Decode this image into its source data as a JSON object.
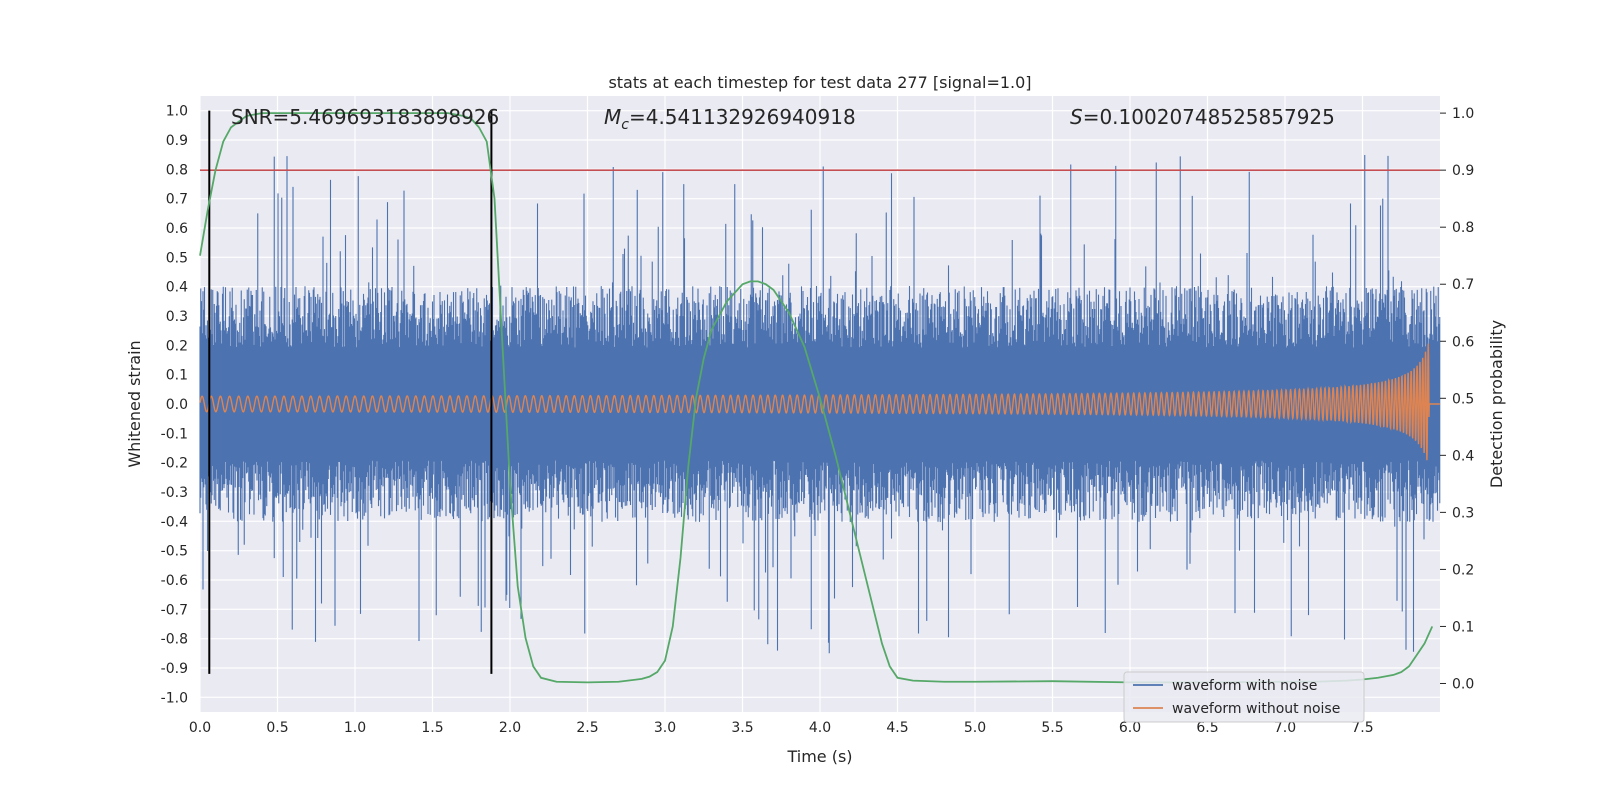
{
  "chart_data": {
    "type": "line",
    "title": "stats at each timestep for test data 277 [signal=1.0]",
    "xlabel": "Time (s)",
    "ylabel_left": "Whitened strain",
    "ylabel_right": "Detection probability",
    "xlim": [
      0.0,
      8.0
    ],
    "ylim_left": [
      -1.05,
      1.05
    ],
    "ylim_right": [
      -0.05,
      1.03
    ],
    "x_ticks": [
      "0.0",
      "0.5",
      "1.0",
      "1.5",
      "2.0",
      "2.5",
      "3.0",
      "3.5",
      "4.0",
      "4.5",
      "5.0",
      "5.5",
      "6.0",
      "6.5",
      "7.0",
      "7.5"
    ],
    "y_ticks_left": [
      "1.0",
      "0.9",
      "0.8",
      "0.7",
      "0.6",
      "0.5",
      "0.4",
      "0.3",
      "0.2",
      "0.1",
      "0.0",
      "-0.1",
      "-0.2",
      "-0.3",
      "-0.4",
      "-0.5",
      "-0.6",
      "-0.7",
      "-0.8",
      "-0.9",
      "-1.0"
    ],
    "y_ticks_right": [
      "1.0",
      "0.9",
      "0.8",
      "0.7",
      "0.6",
      "0.5",
      "0.4",
      "0.3",
      "0.2",
      "0.1",
      "0.0"
    ],
    "grid": true,
    "legend_position": "bottom-right",
    "annotations": {
      "snr": "SNR=5.469693183898926",
      "mc_symbol": "M",
      "mc_sub": "c",
      "mc_value": "=4.541132926940918",
      "s_symbol": "S",
      "s_value": "=0.10020748525857925"
    },
    "colors": {
      "noisy": "#4c72b0",
      "clean": "#dd8452",
      "prob": "#55a868",
      "threshold": "#c44e52",
      "bounds": "#000000",
      "bg": "#eaeaf2",
      "grid": "#ffffff"
    },
    "series": [
      {
        "name": "waveform with noise",
        "style": "noise",
        "envelope_typical": 0.35,
        "peak_max": 1.0
      },
      {
        "name": "waveform without noise",
        "style": "chirp",
        "amplitude_start": 0.02,
        "amplitude_end": 0.22,
        "merger_time": 7.93
      },
      {
        "axis": "right",
        "x": [
          0.0,
          0.05,
          0.1,
          0.15,
          0.2,
          0.3,
          0.4,
          0.6,
          0.8,
          1.0,
          1.2,
          1.4,
          1.6,
          1.7,
          1.75,
          1.8,
          1.85,
          1.9,
          1.95,
          2.0,
          2.05,
          2.1,
          2.15,
          2.2,
          2.3,
          2.5,
          2.7,
          2.85,
          2.9,
          2.95,
          3.0,
          3.05,
          3.1,
          3.15,
          3.2,
          3.25,
          3.3,
          3.4,
          3.5,
          3.55,
          3.6,
          3.65,
          3.7,
          3.8,
          3.9,
          4.0,
          4.1,
          4.2,
          4.3,
          4.4,
          4.45,
          4.5,
          4.6,
          4.8,
          5.0,
          5.5,
          6.0,
          6.5,
          7.0,
          7.2,
          7.4,
          7.5,
          7.6,
          7.7,
          7.75,
          7.8,
          7.85,
          7.9,
          7.95
        ],
        "y": [
          0.75,
          0.83,
          0.9,
          0.95,
          0.975,
          0.995,
          1.0,
          1.0,
          1.0,
          1.0,
          1.0,
          1.0,
          1.0,
          0.995,
          0.99,
          0.975,
          0.95,
          0.85,
          0.6,
          0.35,
          0.17,
          0.08,
          0.03,
          0.01,
          0.003,
          0.002,
          0.003,
          0.008,
          0.012,
          0.02,
          0.04,
          0.1,
          0.22,
          0.38,
          0.5,
          0.57,
          0.62,
          0.67,
          0.7,
          0.705,
          0.705,
          0.7,
          0.69,
          0.65,
          0.59,
          0.5,
          0.4,
          0.29,
          0.18,
          0.07,
          0.03,
          0.01,
          0.005,
          0.003,
          0.003,
          0.004,
          0.002,
          0.002,
          0.003,
          0.003,
          0.005,
          0.007,
          0.01,
          0.015,
          0.02,
          0.03,
          0.05,
          0.07,
          0.1
        ]
      }
    ],
    "threshold_right": 0.9,
    "bounds_x": [
      0.06,
      1.88
    ],
    "bounds_y": [
      -0.92,
      1.0
    ]
  }
}
